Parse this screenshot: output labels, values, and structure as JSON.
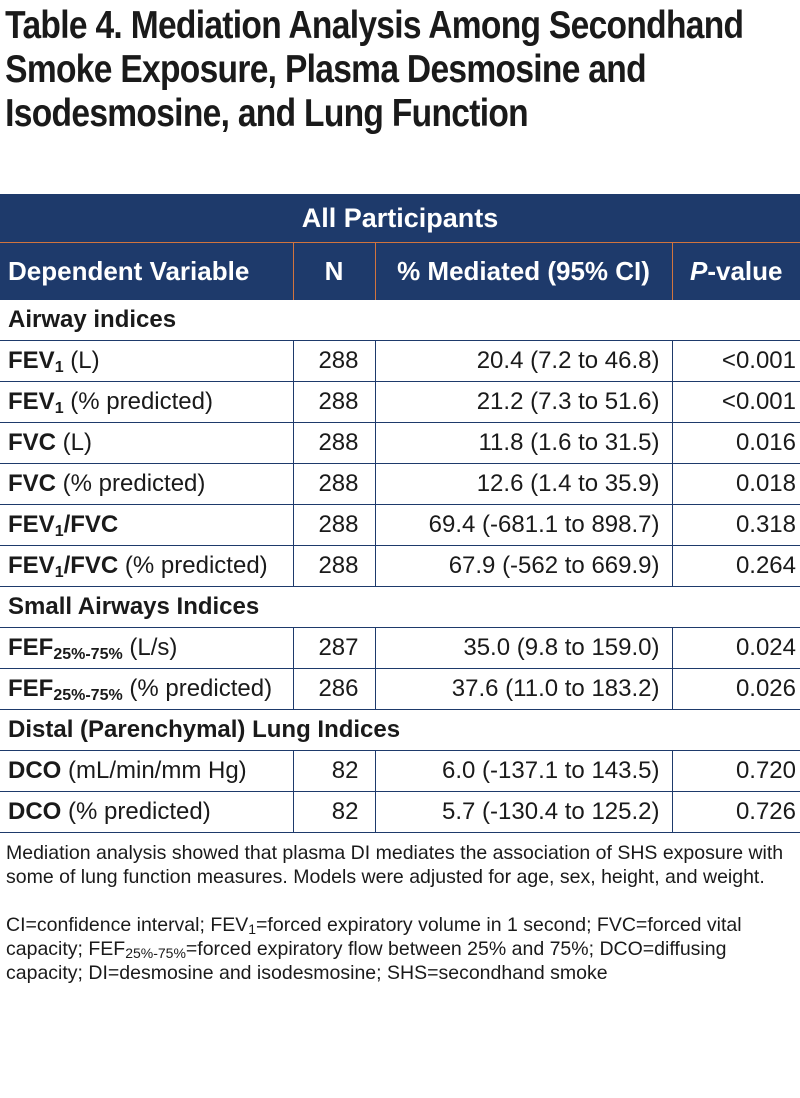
{
  "title": "Table 4. Mediation Analysis Among Secondhand Smoke Exposure, Plasma Desmosine and Isodesmosine, and Lung Function",
  "banner": "All Participants",
  "headers": {
    "dependent": "Dependent Variable",
    "n": "N",
    "mediated": "% Mediated (95% CI)",
    "p_italic": "P",
    "p_rest": "-value"
  },
  "sections": [
    {
      "label": "Airway indices",
      "rows": [
        {
          "name": "FEV",
          "sub": "1",
          "name_tail": "",
          "unit": " (L)",
          "n": "288",
          "mediated": "20.4 (7.2 to 46.8)",
          "p": "<0.001"
        },
        {
          "name": "FEV",
          "sub": "1",
          "name_tail": "",
          "unit": " (% predicted)",
          "n": "288",
          "mediated": "21.2 (7.3 to 51.6)",
          "p": "<0.001"
        },
        {
          "name": "FVC",
          "sub": "",
          "name_tail": "",
          "unit": " (L)",
          "n": "288",
          "mediated": "11.8 (1.6 to 31.5)",
          "p": "0.016"
        },
        {
          "name": "FVC",
          "sub": "",
          "name_tail": "",
          "unit": " (% predicted)",
          "n": "288",
          "mediated": "12.6 (1.4 to 35.9)",
          "p": "0.018"
        },
        {
          "name": "FEV",
          "sub": "1",
          "name_tail": "/FVC",
          "unit": "",
          "n": "288",
          "mediated": "69.4 (-681.1 to 898.7)",
          "p": "0.318"
        },
        {
          "name": "FEV",
          "sub": "1",
          "name_tail": "/FVC",
          "unit": " (% predicted)",
          "n": "288",
          "mediated": "67.9 (-562 to 669.9)",
          "p": "0.264"
        }
      ]
    },
    {
      "label": "Small Airways Indices",
      "rows": [
        {
          "name": "FEF",
          "sub": "25%-75%",
          "name_tail": "",
          "unit": " (L/s)",
          "n": "287",
          "mediated": "35.0 (9.8 to 159.0)",
          "p": "0.024"
        },
        {
          "name": "FEF",
          "sub": "25%-75%",
          "name_tail": "",
          "unit": " (% predicted)",
          "n": "286",
          "mediated": "37.6 (11.0 to 183.2)",
          "p": "0.026"
        }
      ]
    },
    {
      "label": "Distal (Parenchymal) Lung Indices",
      "rows": [
        {
          "name": "DCO",
          "sub": "",
          "name_tail": "",
          "unit": " (mL/min/mm Hg)",
          "n": "82",
          "mediated": "6.0 (-137.1 to 143.5)",
          "p": "0.720"
        },
        {
          "name": "DCO",
          "sub": "",
          "name_tail": "",
          "unit": " (% predicted)",
          "n": "82",
          "mediated": "5.7 (-130.4 to 125.2)",
          "p": "0.726"
        }
      ]
    }
  ],
  "footnotes": {
    "note": "Mediation analysis showed that plasma DI mediates the association of SHS exposure with some of lung function measures. Models were adjusted for age, sex, height, and weight.",
    "abbr_1": "CI=confidence interval; FEV",
    "abbr_1_sub": "1",
    "abbr_2": "=forced expiratory volume in 1 second; FVC=forced vital capacity; FEF",
    "abbr_2_sub": "25%-75%",
    "abbr_3": "=forced expiratory flow between 25% and 75%; DCO=diffusing capacity; DI=desmosine and isodesmosine; SHS=secondhand smoke"
  }
}
